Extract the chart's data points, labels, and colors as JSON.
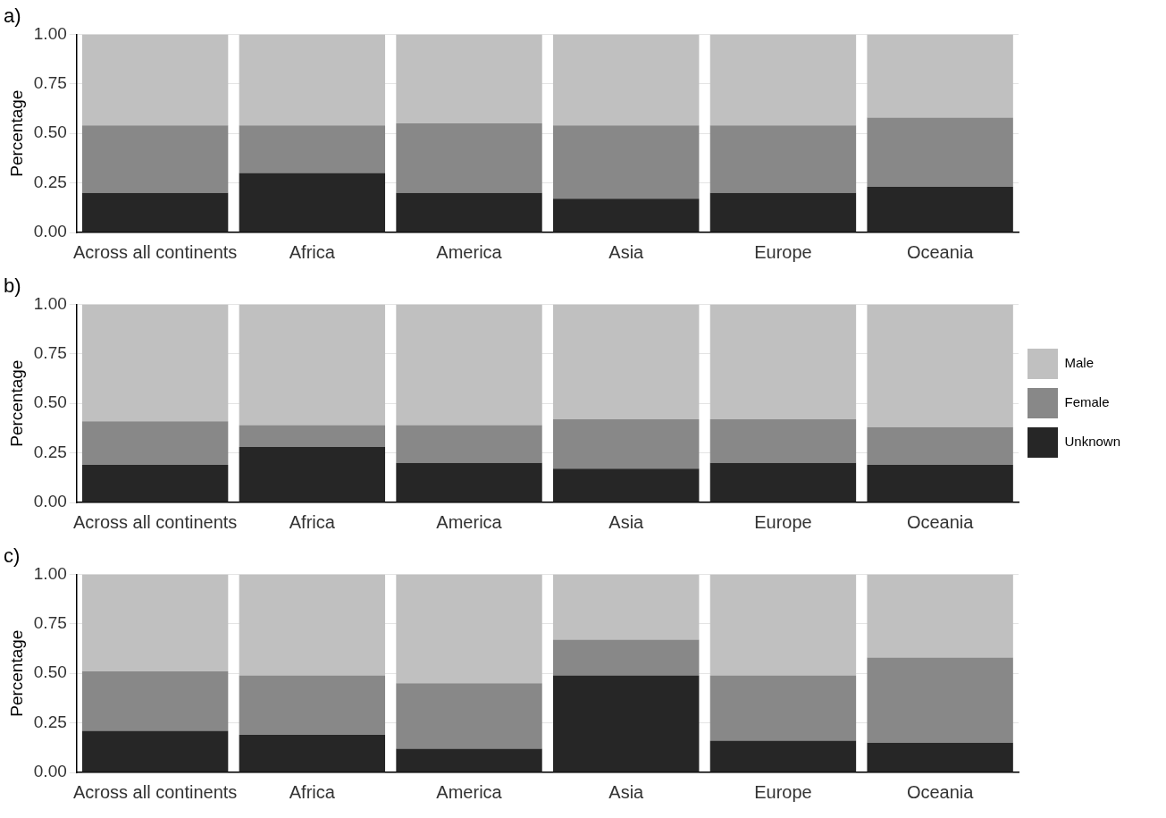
{
  "chart_data": [
    {
      "type": "bar",
      "title": "a)",
      "ylabel": "Percentage",
      "stacked": true,
      "grid": "y",
      "legend": false,
      "categories": [
        "Across all continents",
        "Africa",
        "America",
        "Asia",
        "Europe",
        "Oceania"
      ],
      "series": [
        {
          "color": "#262626",
          "values": [
            0.2,
            0.3,
            0.2,
            0.17,
            0.2,
            0.23
          ]
        },
        {
          "color": "#888888",
          "values": [
            0.34,
            0.24,
            0.35,
            0.37,
            0.34,
            0.35
          ]
        },
        {
          "color": "#c0c0c0",
          "values": [
            0.46,
            0.46,
            0.45,
            0.46,
            0.46,
            0.42
          ]
        }
      ],
      "ylim": [
        0,
        1
      ],
      "yticks": [
        {
          "value": 0,
          "label": "0.00"
        },
        {
          "value": 0.25,
          "label": "0.25"
        },
        {
          "value": 0.5,
          "label": "0.50"
        },
        {
          "value": 0.75,
          "label": "0.75"
        },
        {
          "value": 1,
          "label": "1.00"
        }
      ]
    },
    {
      "type": "bar",
      "title": "b)",
      "ylabel": "Percentage",
      "stacked": true,
      "grid": "y",
      "legend": "right",
      "categories": [
        "Across all continents",
        "Africa",
        "America",
        "Asia",
        "Europe",
        "Oceania"
      ],
      "series": [
        {
          "name": "Unknown",
          "color": "#262626",
          "values": [
            0.19,
            0.28,
            0.2,
            0.17,
            0.2,
            0.19
          ]
        },
        {
          "name": "Female",
          "color": "#888888",
          "values": [
            0.22,
            0.11,
            0.19,
            0.25,
            0.22,
            0.19
          ]
        },
        {
          "name": "Male",
          "color": "#c0c0c0",
          "values": [
            0.59,
            0.61,
            0.61,
            0.58,
            0.58,
            0.62
          ]
        }
      ],
      "ylim": [
        0,
        1
      ],
      "yticks": [
        {
          "value": 0,
          "label": "0.00"
        },
        {
          "value": 0.25,
          "label": "0.25"
        },
        {
          "value": 0.5,
          "label": "0.50"
        },
        {
          "value": 0.75,
          "label": "0.75"
        },
        {
          "value": 1,
          "label": "1.00"
        }
      ]
    },
    {
      "type": "bar",
      "title": "c)",
      "ylabel": "Percentage",
      "stacked": true,
      "grid": "y",
      "legend": false,
      "categories": [
        "Across all continents",
        "Africa",
        "America",
        "Asia",
        "Europe",
        "Oceania"
      ],
      "series": [
        {
          "color": "#262626",
          "values": [
            0.21,
            0.19,
            0.12,
            0.49,
            0.16,
            0.15
          ]
        },
        {
          "color": "#888888",
          "values": [
            0.3,
            0.3,
            0.33,
            0.18,
            0.33,
            0.43
          ]
        },
        {
          "color": "#c0c0c0",
          "values": [
            0.49,
            0.51,
            0.55,
            0.33,
            0.51,
            0.42
          ]
        }
      ],
      "ylim": [
        0,
        1
      ],
      "yticks": [
        {
          "value": 0,
          "label": "0.00"
        },
        {
          "value": 0.25,
          "label": "0.25"
        },
        {
          "value": 0.5,
          "label": "0.50"
        },
        {
          "value": 0.75,
          "label": "0.75"
        },
        {
          "value": 1,
          "label": "1.00"
        }
      ]
    }
  ]
}
